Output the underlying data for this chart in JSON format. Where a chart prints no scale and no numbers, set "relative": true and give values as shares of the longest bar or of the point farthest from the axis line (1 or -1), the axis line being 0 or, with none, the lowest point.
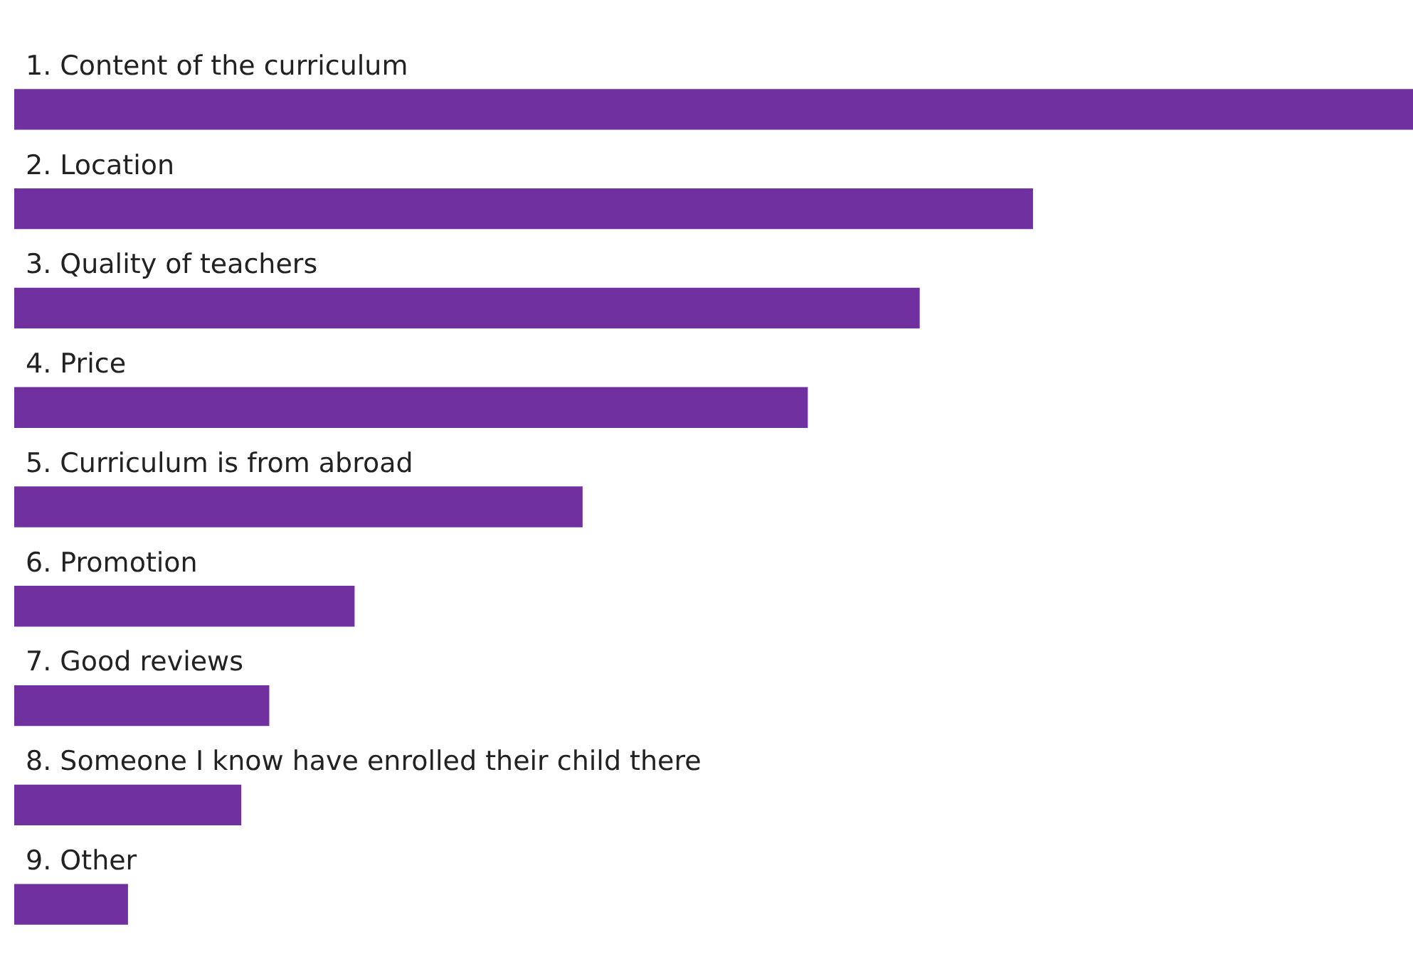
{
  "chart_data": {
    "type": "bar",
    "orientation": "horizontal",
    "relative": true,
    "categories": [
      "1. Content of the curriculum",
      "2. Location",
      "3. Quality of teachers",
      "4. Price",
      "5. Curriculum is from abroad",
      "6. Promotion",
      "7. Good reviews",
      "8. Someone I know have enrolled their child there",
      "9. Other"
    ],
    "values": [
      1,
      0.728,
      0.647,
      0.567,
      0.406,
      0.243,
      0.182,
      0.162,
      0.081
    ],
    "color": "#7030a0"
  }
}
